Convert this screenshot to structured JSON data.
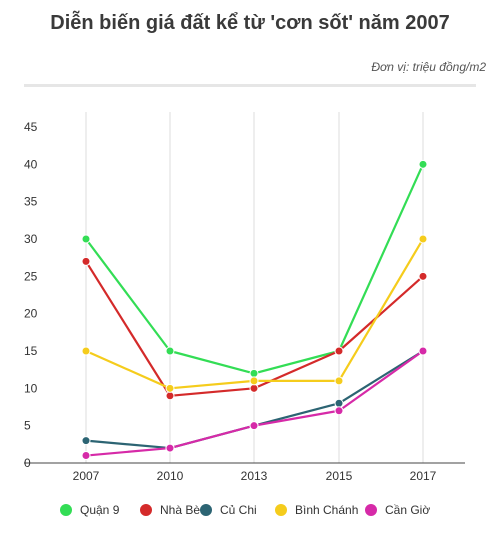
{
  "title": "Diễn biến giá đất kể từ 'cơn sốt' năm 2007",
  "unit_note": "Đơn vị: triệu đồng/m2",
  "chart_data": {
    "type": "line",
    "title": "Diễn biến giá đất kể từ 'cơn sốt' năm 2007",
    "xlabel": "",
    "ylabel": "",
    "categories": [
      "2007",
      "2010",
      "2013",
      "2015",
      "2017"
    ],
    "y_ticks": [
      "0",
      "5",
      "10",
      "15",
      "20",
      "25",
      "30",
      "35",
      "40",
      "45"
    ],
    "ylim": [
      0,
      45
    ],
    "grid": "vertical",
    "legend_position": "bottom",
    "series": [
      {
        "name": "Quận 9",
        "color": "#33dd55",
        "values": [
          30,
          15,
          12,
          15,
          40
        ]
      },
      {
        "name": "Nhà Bè",
        "color": "#d42a2a",
        "values": [
          27,
          9,
          10,
          15,
          25
        ]
      },
      {
        "name": "Củ Chi",
        "color": "#2c6473",
        "values": [
          3,
          2,
          5,
          8,
          15
        ]
      },
      {
        "name": "Bình Chánh",
        "color": "#f5cc1c",
        "values": [
          15,
          10,
          11,
          11,
          30
        ]
      },
      {
        "name": "Cần Giờ",
        "color": "#d62aa8",
        "values": [
          1,
          2,
          5,
          7,
          15
        ]
      }
    ]
  }
}
